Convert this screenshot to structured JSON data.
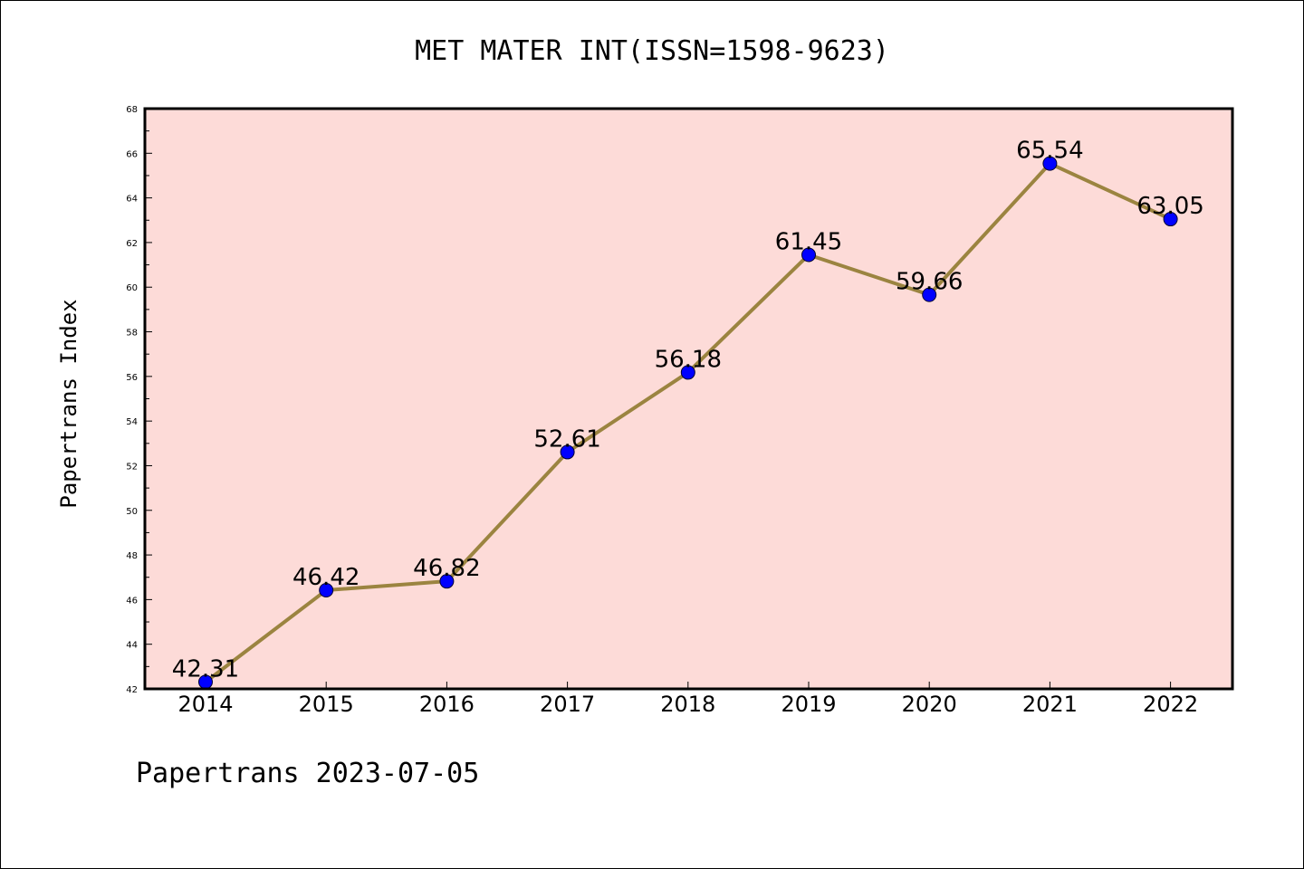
{
  "chart_data": {
    "type": "line",
    "title": "MET MATER INT(ISSN=1598-9623)",
    "xlabel": "",
    "ylabel": "Papertrans Index",
    "categories": [
      "2014",
      "2015",
      "2016",
      "2017",
      "2018",
      "2019",
      "2020",
      "2021",
      "2022"
    ],
    "series": [
      {
        "values": [
          42.31,
          46.42,
          46.82,
          52.61,
          56.18,
          61.45,
          59.66,
          65.54,
          63.05
        ],
        "labels": [
          "42.31",
          "46.42",
          "46.82",
          "52.61",
          "56.18",
          "61.45",
          "59.66",
          "65.54",
          "63.05"
        ]
      }
    ],
    "ylim": [
      42,
      68
    ],
    "yticks": [
      "42",
      "44",
      "46",
      "48",
      "50",
      "52",
      "54",
      "56",
      "58",
      "60",
      "62",
      "64",
      "66",
      "68"
    ],
    "grid": false,
    "colors": {
      "plot_background": "#fddbd8",
      "line": "#9b8440",
      "marker": "#0000ff"
    }
  },
  "footer": "Papertrans 2023-07-05"
}
